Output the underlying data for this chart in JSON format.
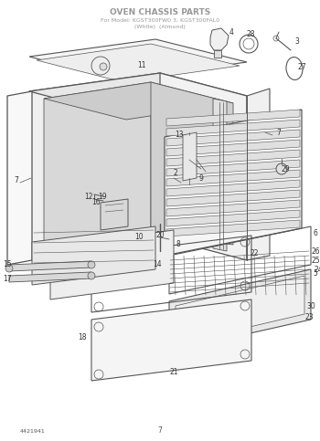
{
  "title_line1": "OVEN CHASSIS PARTS",
  "title_line2": "For Model: KGST300FW0 3, KGST300FAL0",
  "title_line3": "(White)  (Almond)",
  "part_number_bottom_left": "4421941",
  "page_number": "7",
  "bg_color": "#ffffff",
  "line_color": "#555555",
  "title_color": "#999999",
  "label_color": "#333333",
  "fig_w": 3.5,
  "fig_h": 4.83,
  "dpi": 100
}
